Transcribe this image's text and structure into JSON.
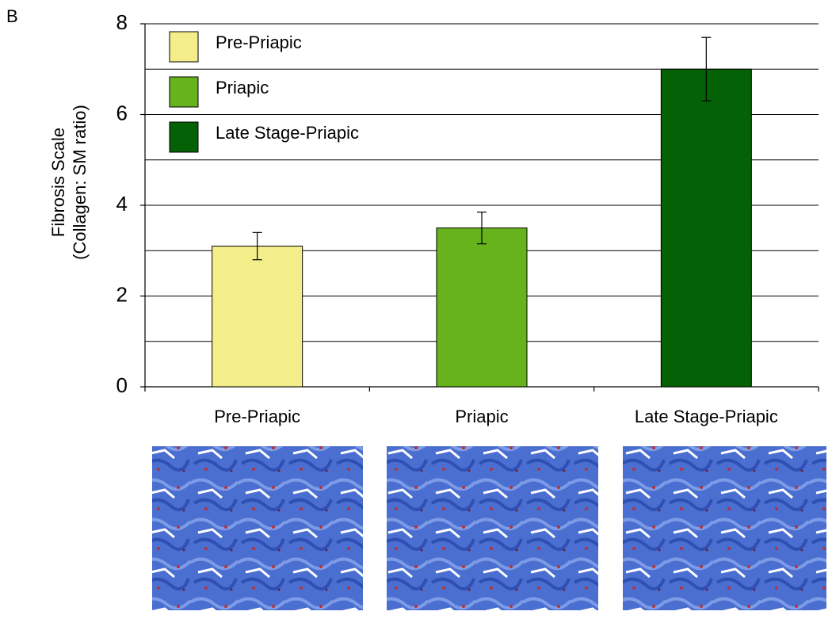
{
  "panel_label": "B",
  "chart_data": {
    "type": "bar",
    "ylabel": [
      "Fibrosis Scale",
      "(Collagen: SM ratio)"
    ],
    "categories": [
      "Pre-Priapic",
      "Priapic",
      "Late Stage-Priapic"
    ],
    "values": [
      3.1,
      3.5,
      7.0
    ],
    "errors": [
      0.3,
      0.35,
      0.7
    ],
    "colors": [
      "#f3ee8a",
      "#66b31d",
      "#056105"
    ],
    "ylim": [
      0,
      8
    ],
    "yticks": [
      0,
      2,
      4,
      6,
      8
    ],
    "grid_lines": [
      1,
      2,
      3,
      4,
      5,
      6,
      7,
      8
    ],
    "legend": {
      "position": "upper left",
      "entries": [
        "Pre-Priapic",
        "Priapic",
        "Late Stage-Priapic"
      ]
    }
  }
}
